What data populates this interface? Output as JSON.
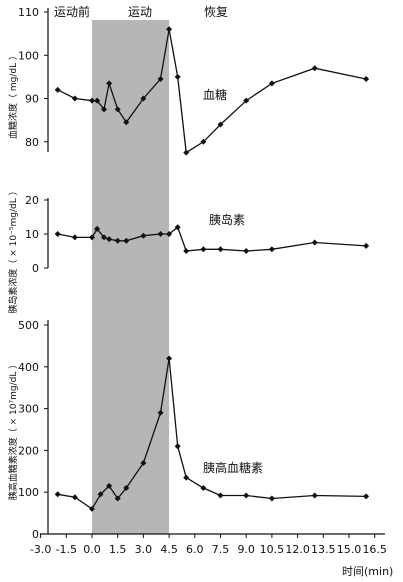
{
  "chart_data": [
    {
      "type": "line",
      "series": [
        {
          "name": "血糖",
          "x": [
            -2.0,
            -1.0,
            0.0,
            0.3,
            0.7,
            1.0,
            1.5,
            2.0,
            3.0,
            4.0,
            4.5,
            5.0,
            5.5,
            6.5,
            7.5,
            9.0,
            10.5,
            13.0,
            16.0
          ],
          "y": [
            92,
            90,
            89.5,
            89.5,
            87.5,
            93.5,
            87.5,
            84.5,
            90,
            94.5,
            106,
            95,
            77.5,
            80,
            84,
            89.5,
            93.5,
            97,
            94.5
          ]
        }
      ],
      "ylabel": "血糖浓度（ mg/dL ）",
      "ylim": [
        70,
        110
      ],
      "yticks": [
        "80",
        "90",
        "100",
        "110"
      ],
      "xlim": [
        -3.0,
        16.5
      ],
      "grid": false
    },
    {
      "type": "line",
      "series": [
        {
          "name": "胰岛素",
          "x": [
            -2.0,
            -1.0,
            0.0,
            0.3,
            0.7,
            1.0,
            1.5,
            2.0,
            3.0,
            4.0,
            4.5,
            5.0,
            5.5,
            6.5,
            7.5,
            9.0,
            10.5,
            13.0,
            16.0
          ],
          "y": [
            10,
            9,
            9,
            11.5,
            9,
            8.5,
            8,
            8,
            9.5,
            10,
            10,
            12,
            5,
            5.5,
            5.5,
            5,
            5.5,
            7.5,
            6.5
          ]
        }
      ],
      "ylabel": "胰岛素浓度（ × 10⁻⁵mg/dL ）",
      "ylim": [
        0,
        20
      ],
      "yticks": [
        "0",
        "10",
        "20"
      ],
      "xlim": [
        -3.0,
        16.5
      ],
      "grid": false
    },
    {
      "type": "line",
      "series": [
        {
          "name": "胰高血糖素",
          "x": [
            -2.0,
            -1.0,
            0.0,
            0.5,
            1.0,
            1.5,
            2.0,
            3.0,
            4.0,
            4.5,
            5.0,
            5.5,
            6.5,
            7.5,
            9.0,
            10.5,
            13.0,
            16.0
          ],
          "y": [
            95,
            88,
            60,
            95,
            115,
            85,
            110,
            170,
            290,
            420,
            210,
            135,
            110,
            92,
            92,
            85,
            92,
            90
          ]
        }
      ],
      "ylabel": "胰高血糖素浓度（ × 10⁷mg/dL ）",
      "ylim": [
        0,
        500
      ],
      "yticks": [
        "0",
        "100",
        "200",
        "300",
        "400",
        "500"
      ],
      "xlim": [
        -3.0,
        16.5
      ],
      "grid": false
    }
  ],
  "phases": {
    "pre": "运动前",
    "exercise": "运动",
    "recovery": "恢复",
    "exercise_range": [
      0,
      4.5
    ]
  },
  "x_axis": {
    "label": "时间(min)",
    "ticks": [
      "-3.0",
      "-1.5",
      "0.0",
      "1.5",
      "3.0",
      "4.5",
      "6.0",
      "7.5",
      "9.0",
      "10.5",
      "12.0",
      "13.5",
      "15.0",
      "16.5"
    ]
  },
  "colors": {
    "shade": "#a9a9a9",
    "line": "#111111"
  }
}
